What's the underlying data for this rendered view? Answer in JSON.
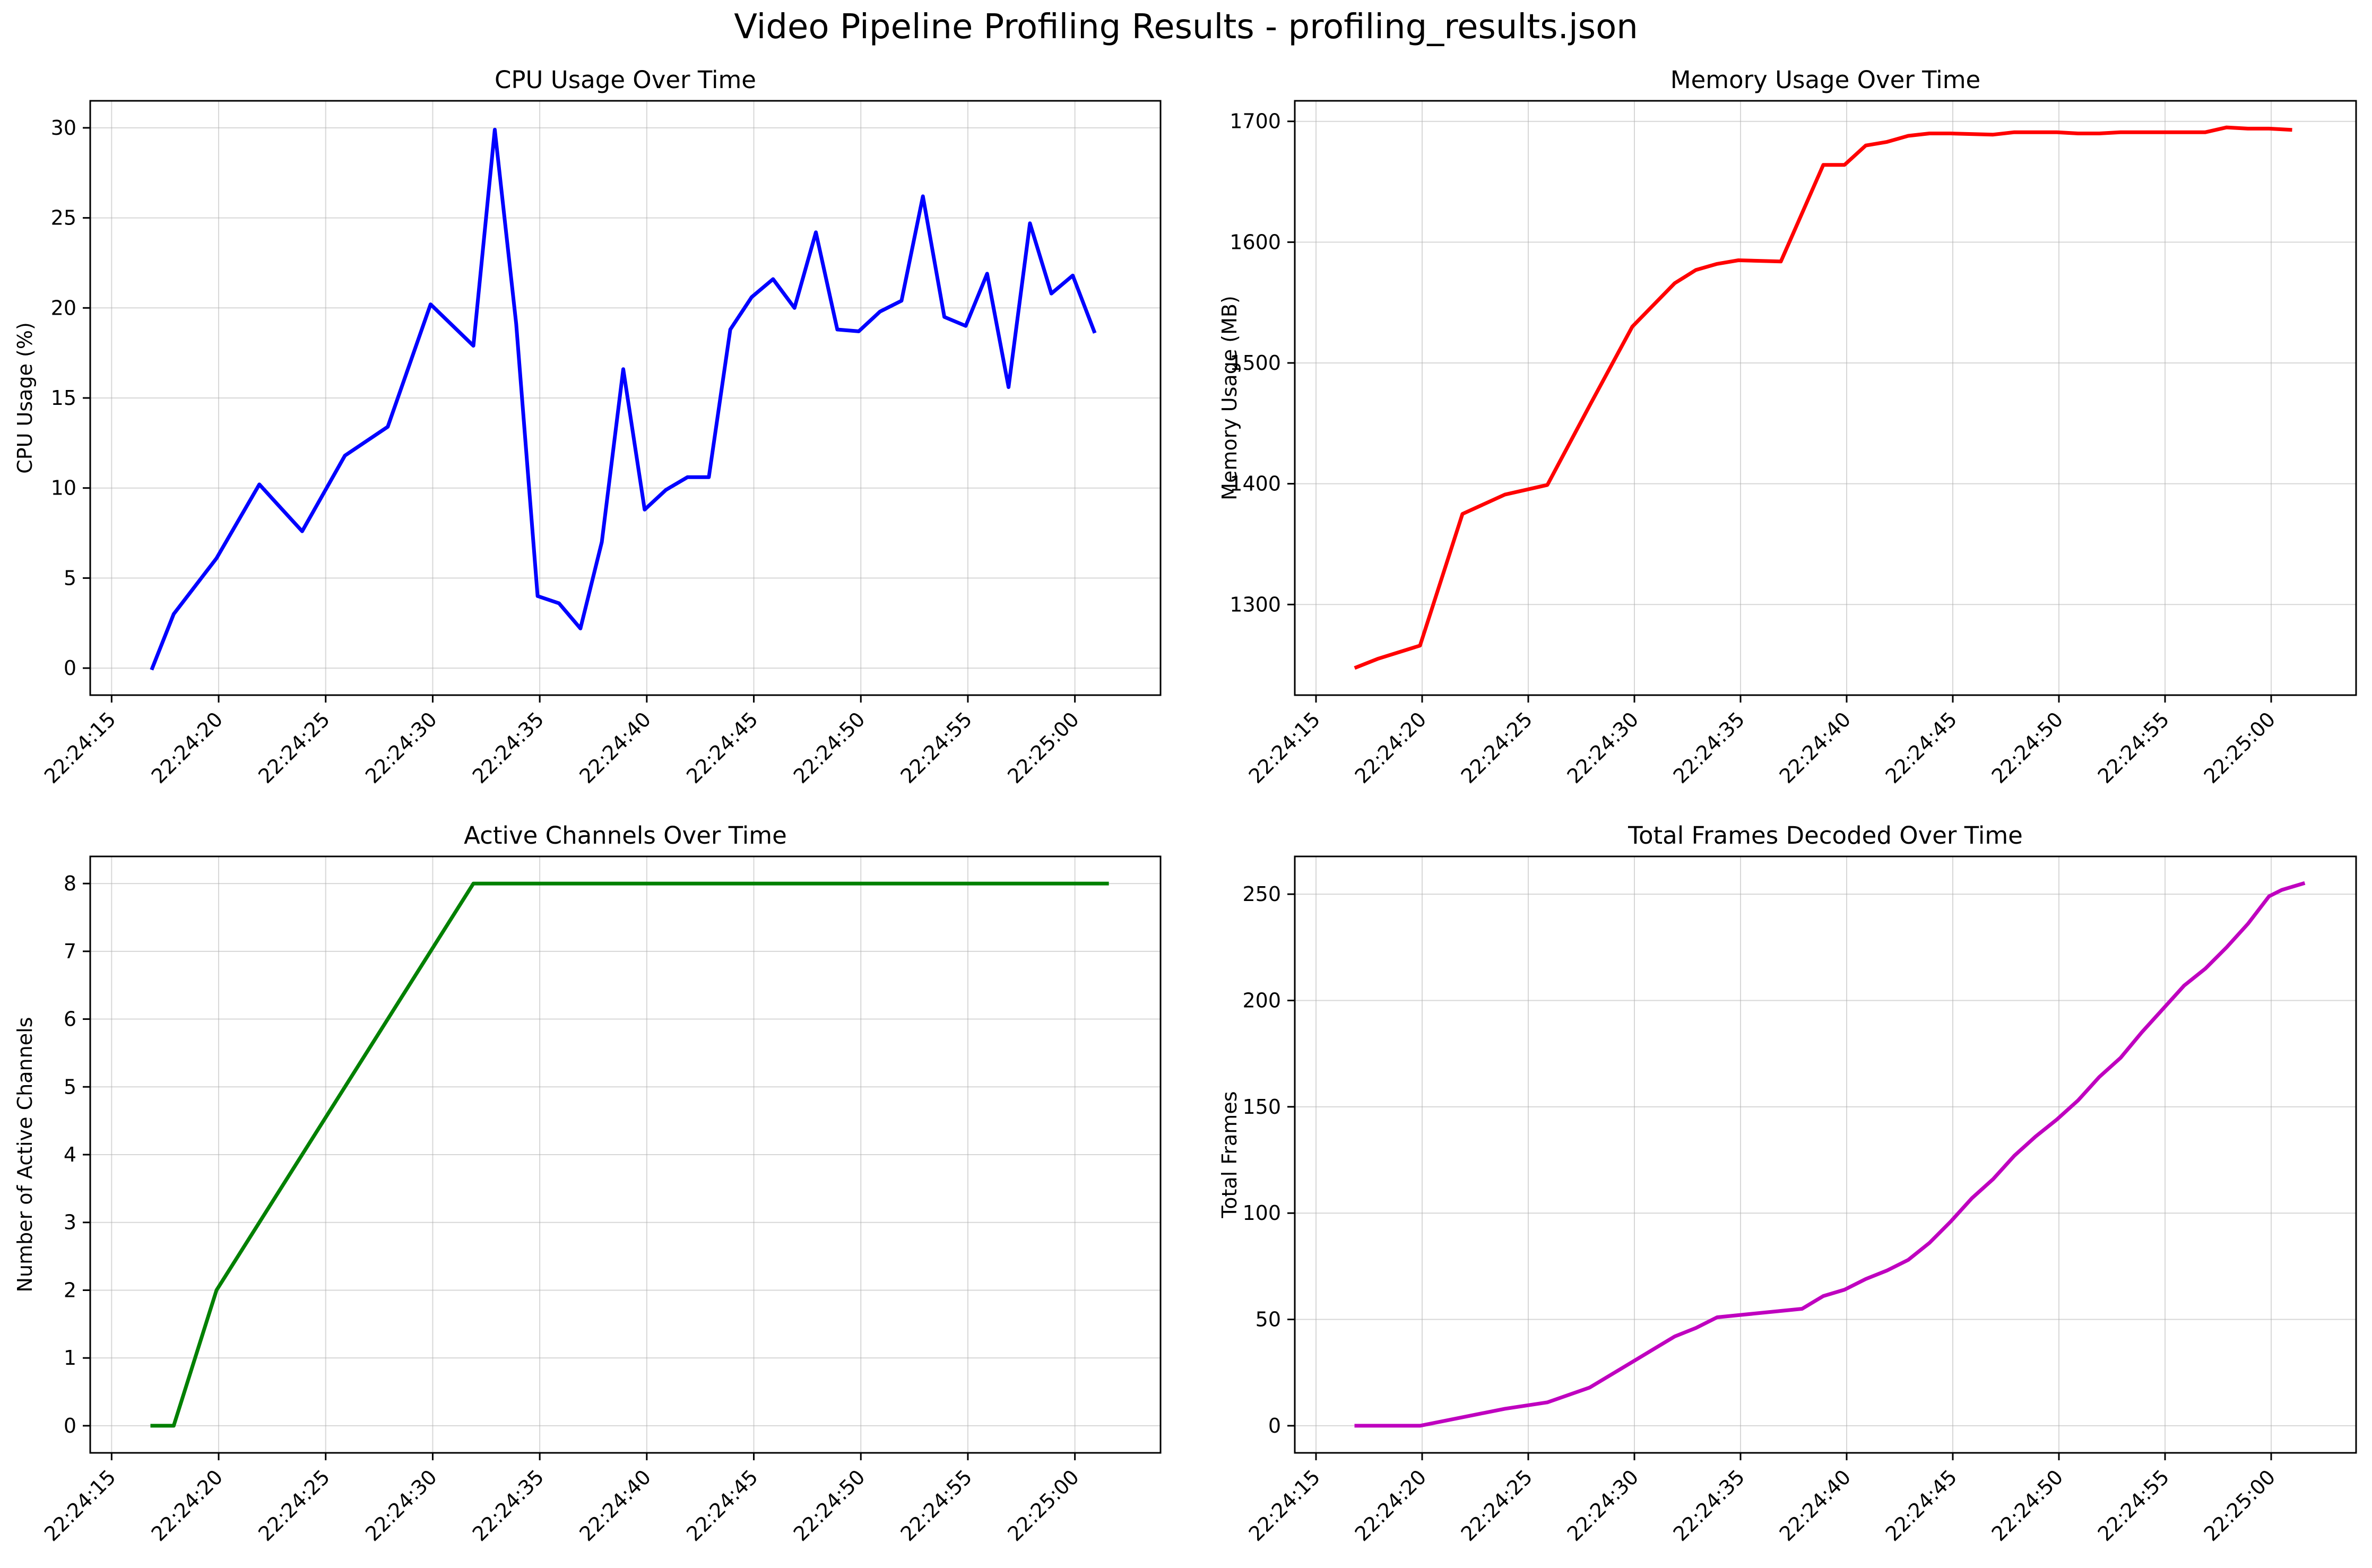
{
  "title": "Video Pipeline Profiling Results - profiling_results.json",
  "chart_data": [
    {
      "type": "line",
      "title": "CPU Usage Over Time",
      "xlabel": "",
      "ylabel": "CPU Usage (%)",
      "color": "#0000ff",
      "xlim": [
        "22:24:14",
        "22:25:04"
      ],
      "ylim": [
        -1.5,
        31.5
      ],
      "yticks": [
        0,
        5,
        10,
        15,
        20,
        25,
        30
      ],
      "xticks": [
        "22:24:15",
        "22:24:20",
        "22:24:25",
        "22:24:30",
        "22:24:35",
        "22:24:40",
        "22:24:45",
        "22:24:50",
        "22:24:55",
        "22:25:00"
      ],
      "grid": true,
      "x": [
        "22:24:16.9",
        "22:24:17.9",
        "22:24:19.9",
        "22:24:21.9",
        "22:24:23.9",
        "22:24:25.9",
        "22:24:27.9",
        "22:24:29.9",
        "22:24:31.9",
        "22:24:32.9",
        "22:24:33.9",
        "22:24:34.9",
        "22:24:35.9",
        "22:24:36.9",
        "22:24:37.9",
        "22:24:38.9",
        "22:24:39.9",
        "22:24:40.9",
        "22:24:41.9",
        "22:24:42.9",
        "22:24:43.9",
        "22:24:44.9",
        "22:24:45.9",
        "22:24:46.9",
        "22:24:47.9",
        "22:24:48.9",
        "22:24:49.9",
        "22:24:50.9",
        "22:24:51.9",
        "22:24:52.9",
        "22:24:53.9",
        "22:24:54.9",
        "22:24:55.9",
        "22:24:56.9",
        "22:24:57.9",
        "22:24:58.9",
        "22:24:59.9",
        "22:25:00.9"
      ],
      "y": [
        0,
        3.0,
        6.1,
        10.2,
        7.6,
        11.8,
        13.4,
        20.2,
        17.9,
        29.9,
        19.1,
        4.0,
        3.6,
        2.2,
        7.0,
        16.6,
        8.8,
        9.9,
        10.6,
        10.6,
        18.8,
        20.6,
        21.6,
        20.0,
        24.2,
        18.8,
        18.7,
        19.8,
        20.4,
        26.2,
        19.5,
        19.0,
        21.9,
        15.6,
        24.7,
        20.8,
        21.8,
        18.7
      ]
    },
    {
      "type": "line",
      "title": "Memory Usage Over Time",
      "xlabel": "",
      "ylabel": "Memory Usage (MB)",
      "color": "#ff0000",
      "xlim": [
        "22:24:14",
        "22:25:04"
      ],
      "ylim": [
        1225,
        1717
      ],
      "yticks": [
        1300,
        1400,
        1500,
        1600,
        1700
      ],
      "xticks": [
        "22:24:15",
        "22:24:20",
        "22:24:25",
        "22:24:30",
        "22:24:35",
        "22:24:40",
        "22:24:45",
        "22:24:50",
        "22:24:55",
        "22:25:00"
      ],
      "grid": true,
      "x": [
        "22:24:16.9",
        "22:24:17.9",
        "22:24:19.9",
        "22:24:21.9",
        "22:24:23.9",
        "22:24:25.9",
        "22:24:27.9",
        "22:24:29.9",
        "22:24:31.9",
        "22:24:32.9",
        "22:24:33.9",
        "22:24:34.9",
        "22:24:36.9",
        "22:24:38.9",
        "22:24:39.9",
        "22:24:40.9",
        "22:24:41.9",
        "22:24:42.9",
        "22:24:43.9",
        "22:24:44.9",
        "22:24:46.9",
        "22:24:47.9",
        "22:24:48.9",
        "22:24:49.9",
        "22:24:50.9",
        "22:24:51.9",
        "22:24:52.9",
        "22:24:53.9",
        "22:24:54.9",
        "22:24:55.9",
        "22:24:56.9",
        "22:24:57.9",
        "22:24:58.9",
        "22:24:59.9",
        "22:25:00.9"
      ],
      "y": [
        1248,
        1255,
        1266,
        1375,
        1391,
        1399,
        1465,
        1530,
        1566,
        1577,
        1582,
        1585,
        1584,
        1664,
        1664,
        1680,
        1683,
        1688,
        1690,
        1690,
        1689,
        1691,
        1691,
        1691,
        1690,
        1690,
        1691,
        1691,
        1691,
        1691,
        1691,
        1695,
        1694,
        1694,
        1693
      ]
    },
    {
      "type": "line",
      "title": "Active Channels Over Time",
      "xlabel": "",
      "ylabel": "Number of Active Channels",
      "color": "#008000",
      "xlim": [
        "22:24:14",
        "22:25:04"
      ],
      "ylim": [
        -0.4,
        8.4
      ],
      "yticks": [
        0,
        1,
        2,
        3,
        4,
        5,
        6,
        7,
        8
      ],
      "xticks": [
        "22:24:15",
        "22:24:20",
        "22:24:25",
        "22:24:30",
        "22:24:35",
        "22:24:40",
        "22:24:45",
        "22:24:50",
        "22:24:55",
        "22:25:00"
      ],
      "grid": true,
      "x": [
        "22:24:16.9",
        "22:24:17.9",
        "22:24:19.9",
        "22:24:31.9",
        "22:25:01.5"
      ],
      "y": [
        0,
        0,
        2,
        8,
        8
      ]
    },
    {
      "type": "line",
      "title": "Total Frames Decoded Over Time",
      "xlabel": "",
      "ylabel": "Total Frames",
      "color": "#bf00bf",
      "xlim": [
        "22:24:14",
        "22:25:04"
      ],
      "ylim": [
        -12.75,
        267.75
      ],
      "yticks": [
        0,
        50,
        100,
        150,
        200,
        250
      ],
      "xticks": [
        "22:24:15",
        "22:24:20",
        "22:24:25",
        "22:24:30",
        "22:24:35",
        "22:24:40",
        "22:24:45",
        "22:24:50",
        "22:24:55",
        "22:25:00"
      ],
      "grid": true,
      "x": [
        "22:24:16.9",
        "22:24:17.9",
        "22:24:19.9",
        "22:24:21.9",
        "22:24:23.9",
        "22:24:25.9",
        "22:24:27.9",
        "22:24:29.9",
        "22:24:31.9",
        "22:24:32.9",
        "22:24:33.9",
        "22:24:34.9",
        "22:24:36.9",
        "22:24:37.9",
        "22:24:38.9",
        "22:24:39.9",
        "22:24:40.9",
        "22:24:41.9",
        "22:24:42.9",
        "22:24:43.9",
        "22:24:44.9",
        "22:24:45.9",
        "22:24:46.9",
        "22:24:47.9",
        "22:24:48.9",
        "22:24:49.9",
        "22:24:50.9",
        "22:24:51.9",
        "22:24:52.9",
        "22:24:53.9",
        "22:24:54.9",
        "22:24:55.9",
        "22:24:56.9",
        "22:24:57.9",
        "22:24:58.9",
        "22:24:59.9",
        "22:25:00.5",
        "22:25:01.5"
      ],
      "y": [
        0,
        0,
        0,
        4,
        8,
        11,
        18,
        30,
        42,
        46,
        51,
        52,
        54,
        55,
        61,
        64,
        69,
        73,
        78,
        86,
        96,
        107,
        116,
        127,
        136,
        144,
        153,
        164,
        173,
        185,
        196,
        207,
        215,
        225,
        236,
        249,
        252,
        255
      ]
    }
  ]
}
